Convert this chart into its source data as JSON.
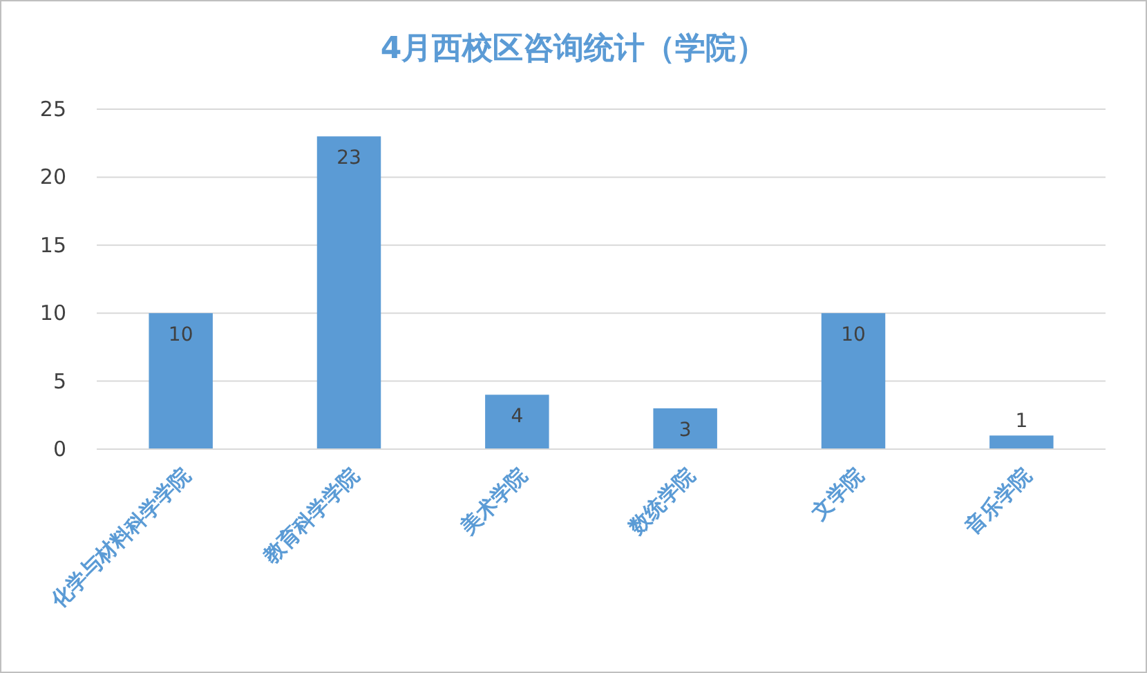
{
  "chart_data": {
    "type": "bar",
    "title": "4月西校区咨询统计（学院）",
    "categories": [
      "化学与材料科学学院",
      "教育科学学院",
      "美术学院",
      "数统学院",
      "文学院",
      "音乐学院"
    ],
    "values": [
      10,
      23,
      4,
      3,
      10,
      1
    ],
    "color": "#5b9bd5",
    "ylim": [
      0,
      25
    ],
    "yticks": [
      0,
      5,
      10,
      15,
      20,
      25
    ],
    "grid": "y",
    "data_labels": true
  }
}
